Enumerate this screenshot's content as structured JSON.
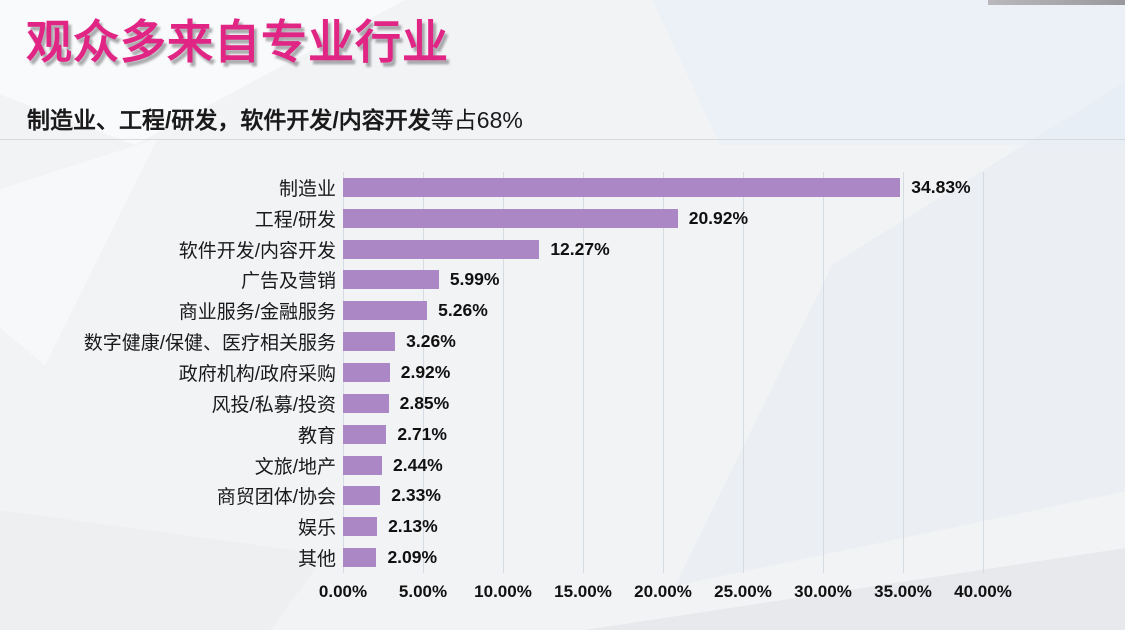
{
  "page": {
    "title": "观众多来自专业行业",
    "subtitle_bold": "制造业、工程/研发，软件开发/内容开发",
    "subtitle_regular": "等占68%"
  },
  "colors": {
    "title": "#E02585",
    "bar": "#AB87C6",
    "gridline": "#D5DBE2",
    "text": "#1A1A1A",
    "background": "#F2F3F5"
  },
  "chart_data": {
    "type": "bar",
    "orientation": "horizontal",
    "title": "观众多来自专业行业",
    "subtitle": "制造业、工程/研发，软件开发/内容开发等占68%",
    "categories": [
      "制造业",
      "工程/研发",
      "软件开发/内容开发",
      "广告及营销",
      "商业服务/金融服务",
      "数字健康/保健、医疗相关服务",
      "政府机构/政府采购",
      "风投/私募/投资",
      "教育",
      "文旅/地产",
      "商贸团体/协会",
      "娱乐",
      "其他"
    ],
    "values": [
      34.83,
      20.92,
      12.27,
      5.99,
      5.26,
      3.26,
      2.92,
      2.85,
      2.71,
      2.44,
      2.33,
      2.13,
      2.09
    ],
    "value_labels": [
      "34.83%",
      "20.92%",
      "12.27%",
      "5.99%",
      "5.26%",
      "3.26%",
      "2.92%",
      "2.85%",
      "2.71%",
      "2.44%",
      "2.33%",
      "2.13%",
      "2.09%"
    ],
    "x_ticks": [
      "0.00%",
      "5.00%",
      "10.00%",
      "15.00%",
      "20.00%",
      "25.00%",
      "30.00%",
      "35.00%",
      "40.00%"
    ],
    "x_tick_values": [
      0,
      5,
      10,
      15,
      20,
      25,
      30,
      35,
      40
    ],
    "xlim": [
      0,
      40
    ],
    "grid": true,
    "legend": false,
    "bar_color": "#AB87C6",
    "value_label_position": "end-of-bar"
  }
}
